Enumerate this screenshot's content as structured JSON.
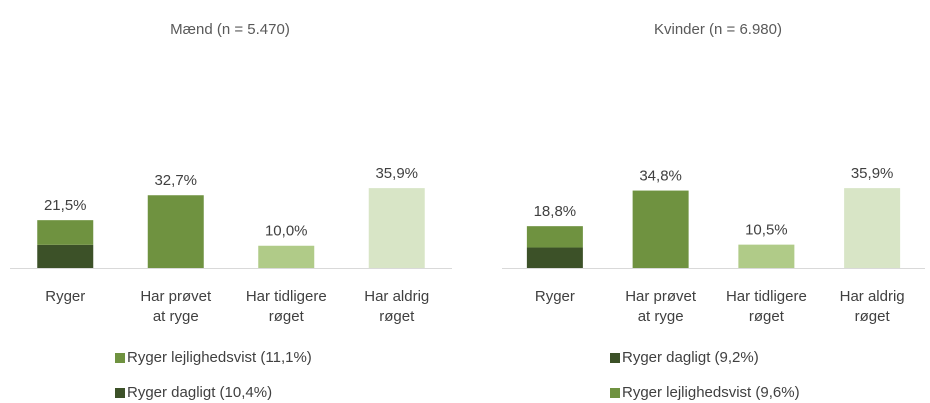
{
  "chart_data": [
    {
      "type": "bar",
      "title": "Mænd (n = 5.470)",
      "categories": [
        "Ryger",
        "Har prøvet at ryge",
        "Har tidligere røget",
        "Har aldrig røget"
      ],
      "values": [
        21.5,
        32.7,
        10.0,
        35.9
      ],
      "value_labels": [
        "21,5%",
        "32,7%",
        "10,0%",
        "35,9%"
      ],
      "colors": [
        null,
        "#6f9240",
        "#b0cb88",
        "#d8e5c6"
      ],
      "series": [
        {
          "name": "Ryger dagligt (10,4%)",
          "color": "#3c5128",
          "value": 10.4
        },
        {
          "name": "Ryger lejlighedsvist (11,1%)",
          "color": "#6f9240",
          "value": 11.1
        }
      ],
      "legend_reversed": true,
      "ylim": [
        0,
        40
      ]
    },
    {
      "type": "bar",
      "title": "Kvinder (n = 6.980)",
      "categories": [
        "Ryger",
        "Har prøvet at ryge",
        "Har tidligere røget",
        "Har aldrig røget"
      ],
      "values": [
        18.8,
        34.8,
        10.5,
        35.9
      ],
      "value_labels": [
        "18,8%",
        "34,8%",
        "10,5%",
        "35,9%"
      ],
      "colors": [
        null,
        "#6f9240",
        "#b0cb88",
        "#d8e5c6"
      ],
      "series": [
        {
          "name": "Ryger dagligt (9,2%)",
          "color": "#3c5128",
          "value": 9.2
        },
        {
          "name": "Ryger lejlighedsvist (9,6%)",
          "color": "#6f9240",
          "value": 9.6
        }
      ],
      "legend_reversed": false,
      "ylim": [
        0,
        40
      ]
    }
  ]
}
